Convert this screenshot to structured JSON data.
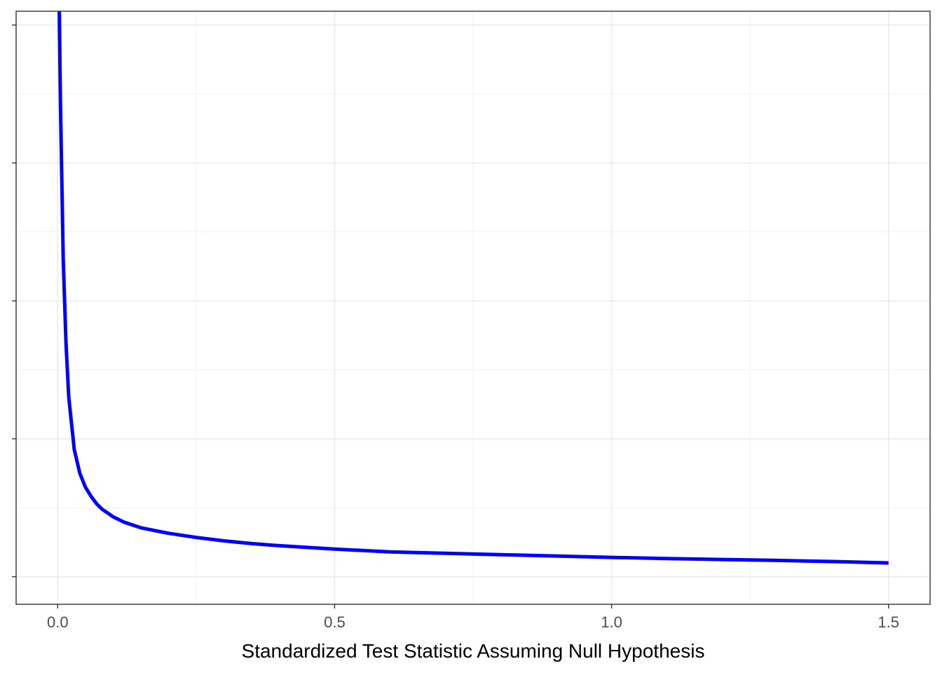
{
  "chart_data": {
    "type": "line",
    "title": "",
    "xlabel": "Standardized Test Statistic Assuming Null Hypothesis",
    "ylabel": "",
    "xlim": [
      -0.075,
      1.575
    ],
    "ylim": [
      -0.2,
      4.1
    ],
    "x_ticks": [
      0.0,
      0.5,
      1.0,
      1.5
    ],
    "x_tick_labels": [
      "0.0",
      "0.5",
      "1.0",
      "1.5"
    ],
    "y_show_tick_labels": false,
    "grid": true,
    "legend": "none",
    "series": [
      {
        "color": "#0000ff",
        "x": [
          0.003,
          0.005,
          0.01,
          0.015,
          0.02,
          0.03,
          0.04,
          0.05,
          0.06,
          0.07,
          0.08,
          0.1,
          0.12,
          0.15,
          0.2,
          0.25,
          0.3,
          0.35,
          0.4,
          0.5,
          0.6,
          0.7,
          0.8,
          0.9,
          1.0,
          1.1,
          1.2,
          1.3,
          1.4,
          1.5
        ],
        "y": [
          4.1,
          3.45,
          2.3,
          1.7,
          1.3,
          0.92,
          0.75,
          0.65,
          0.585,
          0.53,
          0.49,
          0.435,
          0.395,
          0.355,
          0.315,
          0.285,
          0.26,
          0.24,
          0.225,
          0.2,
          0.18,
          0.17,
          0.16,
          0.15,
          0.14,
          0.132,
          0.125,
          0.118,
          0.11,
          0.1
        ]
      }
    ]
  }
}
